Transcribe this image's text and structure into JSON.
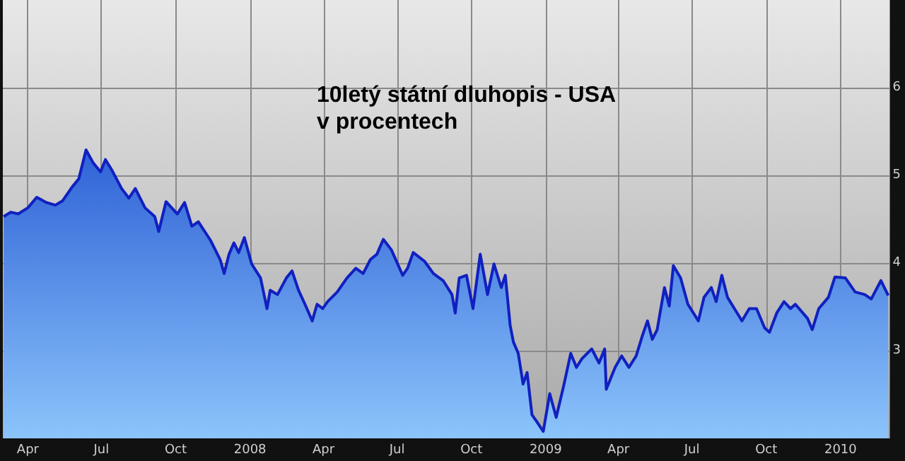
{
  "chart_data": {
    "type": "area",
    "title": "10letý státní dluhopis - USA",
    "subtitle": "v procentech",
    "x": [
      "2007-03-02",
      "2007-03-11",
      "2007-03-20",
      "2007-04-01",
      "2007-04-12",
      "2007-04-24",
      "2007-05-05",
      "2007-05-14",
      "2007-05-26",
      "2007-06-03",
      "2007-06-12",
      "2007-06-21",
      "2007-06-30",
      "2007-07-06",
      "2007-07-14",
      "2007-07-26",
      "2007-08-04",
      "2007-08-12",
      "2007-08-24",
      "2007-09-05",
      "2007-09-10",
      "2007-09-19",
      "2007-10-03",
      "2007-10-12",
      "2007-10-21",
      "2007-10-29",
      "2007-11-13",
      "2007-11-25",
      "2007-11-30",
      "2007-12-06",
      "2007-12-12",
      "2007-12-18",
      "2007-12-25",
      "2008-01-03",
      "2008-01-14",
      "2008-01-22",
      "2008-01-26",
      "2008-02-04",
      "2008-02-15",
      "2008-02-22",
      "2008-03-01",
      "2008-03-09",
      "2008-03-18",
      "2008-03-24",
      "2008-03-31",
      "2008-04-06",
      "2008-04-18",
      "2008-04-30",
      "2008-05-11",
      "2008-05-20",
      "2008-05-29",
      "2008-06-06",
      "2008-06-14",
      "2008-06-24",
      "2008-07-08",
      "2008-07-14",
      "2008-07-21",
      "2008-08-04",
      "2008-08-15",
      "2008-08-27",
      "2008-09-07",
      "2008-09-11",
      "2008-09-16",
      "2008-09-25",
      "2008-10-03",
      "2008-10-12",
      "2008-10-21",
      "2008-10-29",
      "2008-11-07",
      "2008-11-12",
      "2008-11-18",
      "2008-11-22",
      "2008-11-28",
      "2008-12-04",
      "2008-12-09",
      "2008-12-15",
      "2008-12-21",
      "2008-12-29",
      "2009-01-06",
      "2009-01-14",
      "2009-01-23",
      "2009-02-01",
      "2009-02-08",
      "2009-02-15",
      "2009-02-27",
      "2009-03-08",
      "2009-03-15",
      "2009-03-17",
      "2009-03-28",
      "2009-04-05",
      "2009-04-14",
      "2009-04-23",
      "2009-05-01",
      "2009-05-07",
      "2009-05-13",
      "2009-05-19",
      "2009-05-28",
      "2009-06-03",
      "2009-06-08",
      "2009-06-17",
      "2009-06-26",
      "2009-07-09",
      "2009-07-16",
      "2009-07-25",
      "2009-07-31",
      "2009-08-07",
      "2009-08-14",
      "2009-08-26",
      "2009-09-01",
      "2009-09-10",
      "2009-09-19",
      "2009-09-29",
      "2009-10-05",
      "2009-10-14",
      "2009-10-23",
      "2009-10-31",
      "2009-11-06",
      "2009-11-21",
      "2009-11-27",
      "2009-12-05",
      "2009-12-17",
      "2009-12-25",
      "2010-01-07",
      "2010-01-19",
      "2010-01-31",
      "2010-02-08",
      "2010-02-20",
      "2010-03-01"
    ],
    "series": [
      {
        "color": "#1020c0",
        "values": [
          4.53,
          4.58,
          4.56,
          4.63,
          4.75,
          4.69,
          4.66,
          4.71,
          4.87,
          4.96,
          5.29,
          5.14,
          5.04,
          5.18,
          5.06,
          4.85,
          4.74,
          4.85,
          4.63,
          4.53,
          4.36,
          4.7,
          4.56,
          4.69,
          4.42,
          4.47,
          4.26,
          4.04,
          3.88,
          4.1,
          4.23,
          4.12,
          4.29,
          3.99,
          3.83,
          3.48,
          3.69,
          3.64,
          3.83,
          3.91,
          3.69,
          3.53,
          3.34,
          3.53,
          3.48,
          3.56,
          3.67,
          3.83,
          3.94,
          3.88,
          4.04,
          4.1,
          4.27,
          4.15,
          3.86,
          3.94,
          4.12,
          4.02,
          3.88,
          3.8,
          3.64,
          3.43,
          3.83,
          3.86,
          3.48,
          4.1,
          3.64,
          3.99,
          3.72,
          3.86,
          3.29,
          3.1,
          2.97,
          2.62,
          2.75,
          2.27,
          2.19,
          2.08,
          2.51,
          2.24,
          2.59,
          2.97,
          2.81,
          2.91,
          3.02,
          2.86,
          3.02,
          2.56,
          2.81,
          2.94,
          2.81,
          2.94,
          3.18,
          3.34,
          3.13,
          3.24,
          3.72,
          3.51,
          3.97,
          3.83,
          3.53,
          3.34,
          3.61,
          3.72,
          3.56,
          3.86,
          3.61,
          3.43,
          3.34,
          3.48,
          3.48,
          3.26,
          3.21,
          3.43,
          3.56,
          3.48,
          3.53,
          3.37,
          3.24,
          3.48,
          3.61,
          3.84,
          3.83,
          3.67,
          3.64,
          3.59,
          3.8,
          3.63
        ]
      }
    ],
    "xlim": [
      "2007-03-01",
      "2010-03-03"
    ],
    "xticks": [
      {
        "value": "2007-04-01",
        "label": "Apr"
      },
      {
        "value": "2007-07-01",
        "label": "Jul"
      },
      {
        "value": "2007-10-01",
        "label": "Oct"
      },
      {
        "value": "2008-01-01",
        "label": "2008"
      },
      {
        "value": "2008-04-01",
        "label": "Apr"
      },
      {
        "value": "2008-07-01",
        "label": "Jul"
      },
      {
        "value": "2008-10-01",
        "label": "Oct"
      },
      {
        "value": "2009-01-01",
        "label": "2009"
      },
      {
        "value": "2009-04-01",
        "label": "Apr"
      },
      {
        "value": "2009-07-01",
        "label": "Jul"
      },
      {
        "value": "2009-10-01",
        "label": "Oct"
      },
      {
        "value": "2010-01-01",
        "label": "2010"
      }
    ],
    "ylim": [
      2,
      7
    ],
    "yticks": [
      3,
      4,
      5,
      6
    ],
    "grid": true
  }
}
